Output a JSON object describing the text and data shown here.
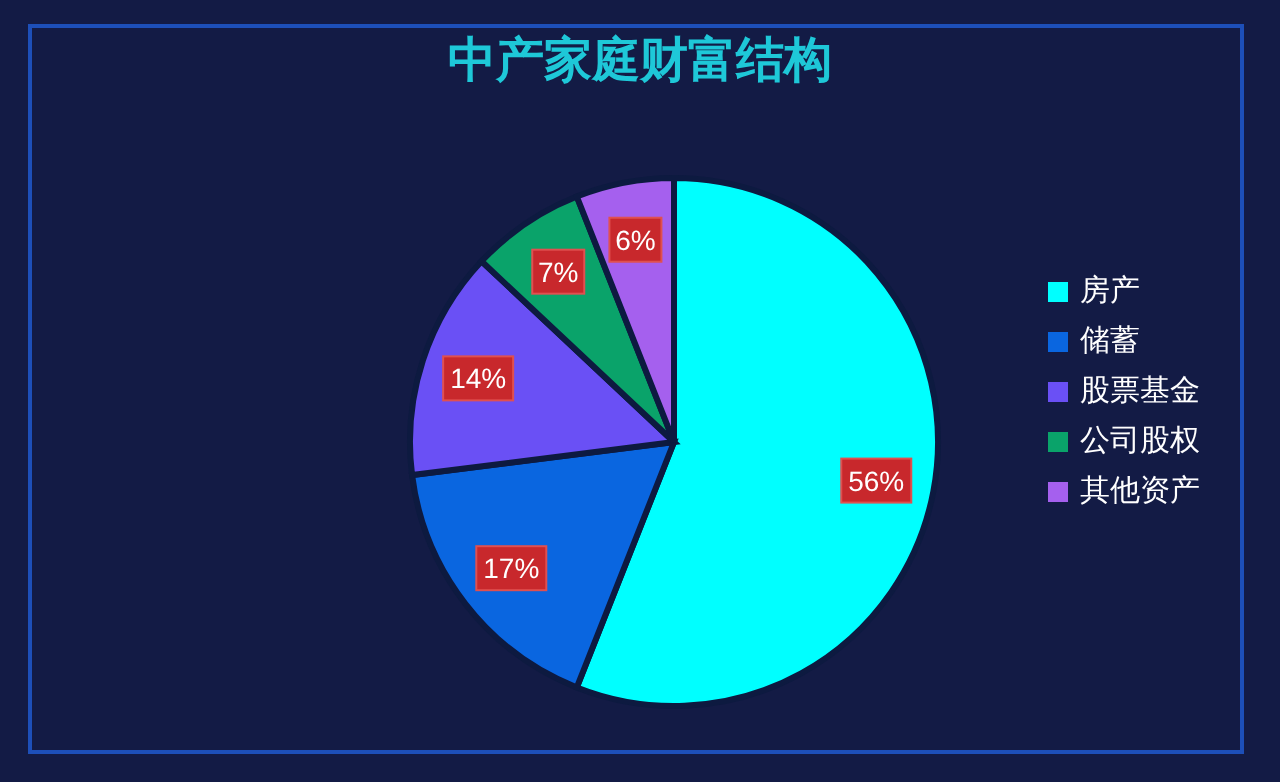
{
  "chart_data": {
    "type": "pie",
    "title": "中产家庭财富结构",
    "categories": [
      "房产",
      "储蓄",
      "股票基金",
      "公司股权",
      "其他资产"
    ],
    "values": [
      56,
      17,
      14,
      7,
      6
    ],
    "colors": [
      "#00ffff",
      "#0a66e0",
      "#6a50f5",
      "#0aa36a",
      "#a560ee"
    ],
    "value_labels": [
      "56%",
      "17%",
      "14%",
      "7%",
      "6%"
    ],
    "legend": "right"
  }
}
